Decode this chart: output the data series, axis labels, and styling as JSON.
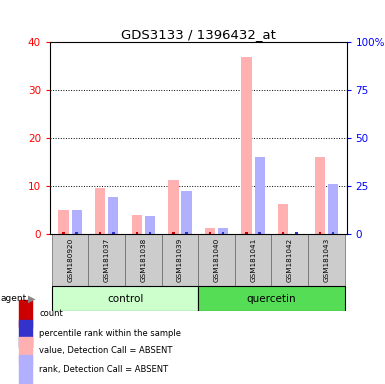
{
  "title": "GDS3133 / 1396432_at",
  "samples": [
    "GSM180920",
    "GSM181037",
    "GSM181038",
    "GSM181039",
    "GSM181040",
    "GSM181041",
    "GSM181042",
    "GSM181043"
  ],
  "absent_value": [
    5.0,
    9.7,
    4.0,
    11.2,
    1.2,
    37.0,
    6.3,
    16.0
  ],
  "absent_rank": [
    5.0,
    7.8,
    3.8,
    9.0,
    1.2,
    16.0,
    0.0,
    10.5
  ],
  "count_values": [
    0.5,
    0.5,
    0.5,
    0.5,
    0.5,
    0.5,
    0.5,
    0.5
  ],
  "rank_values": [
    0.5,
    0.5,
    0.5,
    0.5,
    0.5,
    0.5,
    0.5,
    0.5
  ],
  "ylim": [
    0,
    40
  ],
  "ylim_right": [
    0,
    100
  ],
  "yticks_left": [
    0,
    10,
    20,
    30,
    40
  ],
  "yticks_right": [
    0,
    25,
    50,
    75,
    100
  ],
  "count_color": "#cc0000",
  "rank_color": "#3333cc",
  "absent_value_color": "#ffb0b0",
  "absent_rank_color": "#b0b0ff",
  "legend_items": [
    "count",
    "percentile rank within the sample",
    "value, Detection Call = ABSENT",
    "rank, Detection Call = ABSENT"
  ],
  "legend_colors": [
    "#cc0000",
    "#3333cc",
    "#ffb0b0",
    "#b0b0ff"
  ],
  "group_info": [
    {
      "start": 0,
      "end": 3,
      "label": "control",
      "color": "#ccffcc"
    },
    {
      "start": 4,
      "end": 7,
      "label": "quercetin",
      "color": "#55dd55"
    }
  ],
  "sample_box_color": "#cccccc",
  "plot_bg": "#ffffff"
}
